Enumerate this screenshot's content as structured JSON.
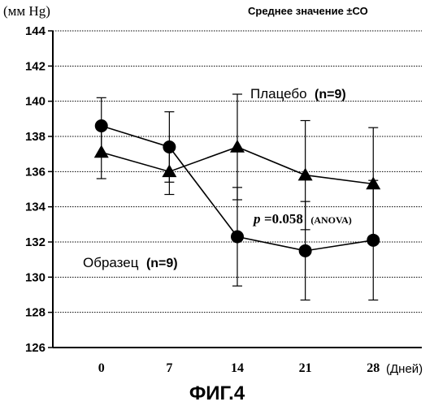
{
  "chart_data": {
    "type": "line",
    "y_unit_label": "(мм Hg)",
    "stat_note": "Среднее значение ±СО",
    "x_unit_label": "(Дней)",
    "x": [
      0,
      7,
      14,
      21,
      28
    ],
    "xlim": [
      -5,
      33
    ],
    "ylim": [
      126,
      144
    ],
    "yticks": [
      126,
      128,
      130,
      132,
      134,
      136,
      138,
      140,
      142,
      144
    ],
    "grid": true,
    "series": [
      {
        "name": "Плацебо",
        "n_label": "(n=9)",
        "marker": "triangle",
        "values": [
          137.1,
          136.0,
          137.4,
          135.8,
          135.3
        ],
        "error": [
          1.5,
          1.3,
          3.0,
          3.1,
          3.2
        ]
      },
      {
        "name": "Образец",
        "n_label": "(n=9)",
        "marker": "circle",
        "values": [
          138.6,
          137.4,
          132.3,
          131.5,
          132.1
        ],
        "error": [
          1.6,
          2.0,
          2.8,
          2.8,
          3.4
        ]
      }
    ],
    "annotation": {
      "p_symbol": "p",
      "p_value": "=0.058",
      "test": "(ANOVA)"
    },
    "figure_label": "ФИГ.4"
  }
}
